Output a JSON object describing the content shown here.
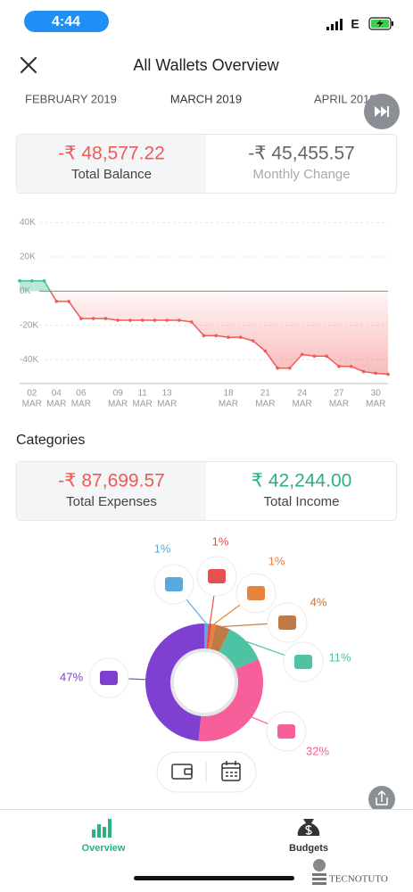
{
  "status_bar": {
    "time": "4:44",
    "network": "E"
  },
  "header": {
    "title": "All Wallets Overview"
  },
  "month_tabs": [
    "FEBRUARY 2019",
    "MARCH 2019",
    "APRIL 2019"
  ],
  "balance_summary": {
    "balance": {
      "amount": "-₹ 48,577.22",
      "label": "Total Balance"
    },
    "change": {
      "amount": "-₹ 45,455.57",
      "label": "Monthly Change"
    }
  },
  "balance_chart": {
    "type": "line",
    "x": [
      1,
      2,
      3,
      4,
      5,
      6,
      7,
      8,
      9,
      10,
      11,
      12,
      13,
      14,
      15,
      16,
      17,
      18,
      19,
      20,
      21,
      22,
      23,
      24,
      25,
      26,
      27,
      28,
      29,
      30,
      31
    ],
    "values": [
      6000,
      6000,
      6000,
      -6000,
      -6000,
      -16000,
      -16000,
      -16000,
      -17000,
      -17000,
      -17000,
      -17000,
      -17000,
      -17000,
      -18000,
      -26000,
      -26000,
      -27000,
      -27000,
      -29000,
      -35000,
      -45000,
      -45000,
      -37000,
      -38000,
      -38000,
      -44000,
      -44000,
      -47000,
      -48000,
      -48577
    ],
    "xlim": [
      1,
      31
    ],
    "ylim": [
      -54000,
      45000
    ],
    "yticks": [
      {
        "value": 40000,
        "label": "40K"
      },
      {
        "value": 20000,
        "label": "20K"
      },
      {
        "value": 0,
        "label": "0K"
      },
      {
        "value": -20000,
        "label": "-20K"
      },
      {
        "value": -40000,
        "label": "-40K"
      }
    ],
    "xticks": [
      {
        "value": 2,
        "label": "02"
      },
      {
        "value": 4,
        "label": "04"
      },
      {
        "value": 6,
        "label": "06"
      },
      {
        "value": 9,
        "label": "09"
      },
      11,
      13,
      18,
      21,
      24,
      27,
      30
    ],
    "x_month": "MAR",
    "grid": true,
    "positive_color": "#3cc08e",
    "negative_color": "#ee5a55"
  },
  "categories": {
    "title": "Categories",
    "expenses": {
      "amount": "-₹ 87,699.57",
      "label": "Total Expenses"
    },
    "income": {
      "amount": "₹ 42,244.00",
      "label": "Total Income"
    }
  },
  "category_chart": {
    "type": "donut",
    "values": [
      1,
      1,
      1,
      4,
      11,
      32,
      47
    ],
    "value_labels": [
      "1%",
      "1%",
      "1%",
      "4%",
      "11%",
      "32%",
      "47%"
    ],
    "colors": [
      "#5aa8e0",
      "#e8504f",
      "#e8833a",
      "#c07a45",
      "#4ec3a4",
      "#f75f9a",
      "#7f3fd1"
    ]
  },
  "nav": {
    "items": [
      "Overview",
      "Budgets"
    ]
  },
  "watermark": "TECNOTUTO"
}
